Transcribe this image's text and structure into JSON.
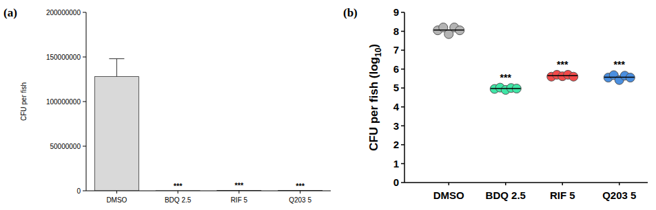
{
  "chart_data": [
    {
      "type": "bar",
      "title": "(a)",
      "y_label": "CFU per fish",
      "categories": [
        "DMSO",
        "BDQ  2.5",
        "RIF 5",
        "Q203 5"
      ],
      "values": [
        128000000,
        89000,
        417000,
        355000
      ],
      "errors": [
        20000000,
        null,
        null,
        null
      ],
      "color": "#d9d9d9",
      "ylim": [
        0,
        200000000
      ],
      "yticks": [
        0,
        50000000,
        100000000,
        150000000,
        200000000
      ],
      "grid": false,
      "annotations": [
        {
          "category": "BDQ  2.5",
          "text": "***"
        },
        {
          "category": "RIF 5",
          "text": "***"
        },
        {
          "category": "Q203 5",
          "text": "***"
        }
      ]
    },
    {
      "type": "dot",
      "title": "(b)",
      "y_label": "CFU per fish (log10)",
      "categories": [
        "DMSO",
        "BDQ  2.5",
        "RIF 5",
        "Q203 5"
      ],
      "points": [
        [
          8.05,
          8.2,
          7.85,
          8.2,
          8.05
        ],
        [
          4.95,
          5.02,
          4.9,
          5.0,
          4.97
        ],
        [
          5.6,
          5.7,
          5.62,
          5.7,
          5.6
        ],
        [
          5.55,
          5.68,
          5.42,
          5.65,
          5.55
        ]
      ],
      "means": [
        8.07,
        4.97,
        5.65,
        5.57
      ],
      "colors": [
        "#b4b4b4",
        "#3ee6a6",
        "#f24a4a",
        "#4a8fe0"
      ],
      "ylim": [
        0,
        9
      ],
      "yticks": [
        0,
        1,
        2,
        3,
        4,
        5,
        6,
        7,
        8,
        9
      ],
      "grid": false,
      "annotations": [
        {
          "category": "BDQ  2.5",
          "text": "***"
        },
        {
          "category": "RIF 5",
          "text": "***"
        },
        {
          "category": "Q203 5",
          "text": "***"
        }
      ]
    }
  ]
}
